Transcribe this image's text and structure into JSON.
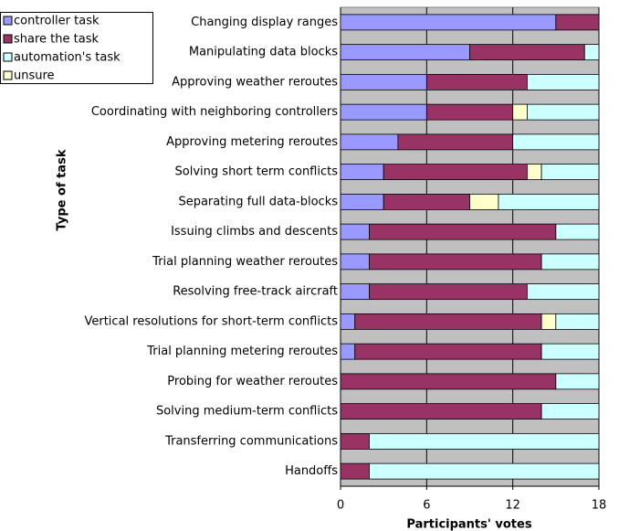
{
  "chart_data": {
    "type": "stacked_barh",
    "y_label": "Type of task",
    "x_label": "Participants' votes",
    "categories": [
      "Changing display ranges",
      "Manipulating data blocks",
      "Approving weather reroutes",
      "Coordinating with neighboring controllers",
      "Approving metering reroutes",
      "Solving short term conflicts",
      "Separating full data-blocks",
      "Issuing climbs and descents",
      "Trial planning weather reroutes",
      "Resolving free-track aircraft",
      "Vertical resolutions for short-term conflicts",
      "Trial planning metering reroutes",
      "Probing for weather reroutes",
      "Solving medium-term conflicts",
      "Transferring communications",
      "Handoffs"
    ],
    "series": [
      {
        "name": "controller task",
        "color": "#9999ff",
        "values": [
          15,
          9,
          6,
          6,
          4,
          3,
          3,
          2,
          2,
          2,
          1,
          1,
          0,
          0,
          0,
          0
        ]
      },
      {
        "name": "share the task",
        "color": "#993366",
        "values": [
          3,
          8,
          7,
          6,
          8,
          10,
          6,
          13,
          12,
          11,
          13,
          13,
          15,
          14,
          2,
          2
        ]
      },
      {
        "name": "unsure",
        "color": "#ffffcc",
        "values": [
          0,
          0,
          0,
          1,
          0,
          1,
          2,
          0,
          0,
          0,
          1,
          0,
          0,
          0,
          0,
          0
        ]
      },
      {
        "name": "automation's task",
        "color": "#ccffff",
        "values": [
          0,
          1,
          5,
          5,
          6,
          4,
          7,
          3,
          4,
          5,
          3,
          4,
          3,
          4,
          16,
          16
        ]
      }
    ],
    "legend_order": [
      0,
      1,
      3,
      2
    ],
    "xlim": [
      0,
      18
    ],
    "xticks": [
      0,
      6,
      12,
      18
    ],
    "grid": true
  }
}
